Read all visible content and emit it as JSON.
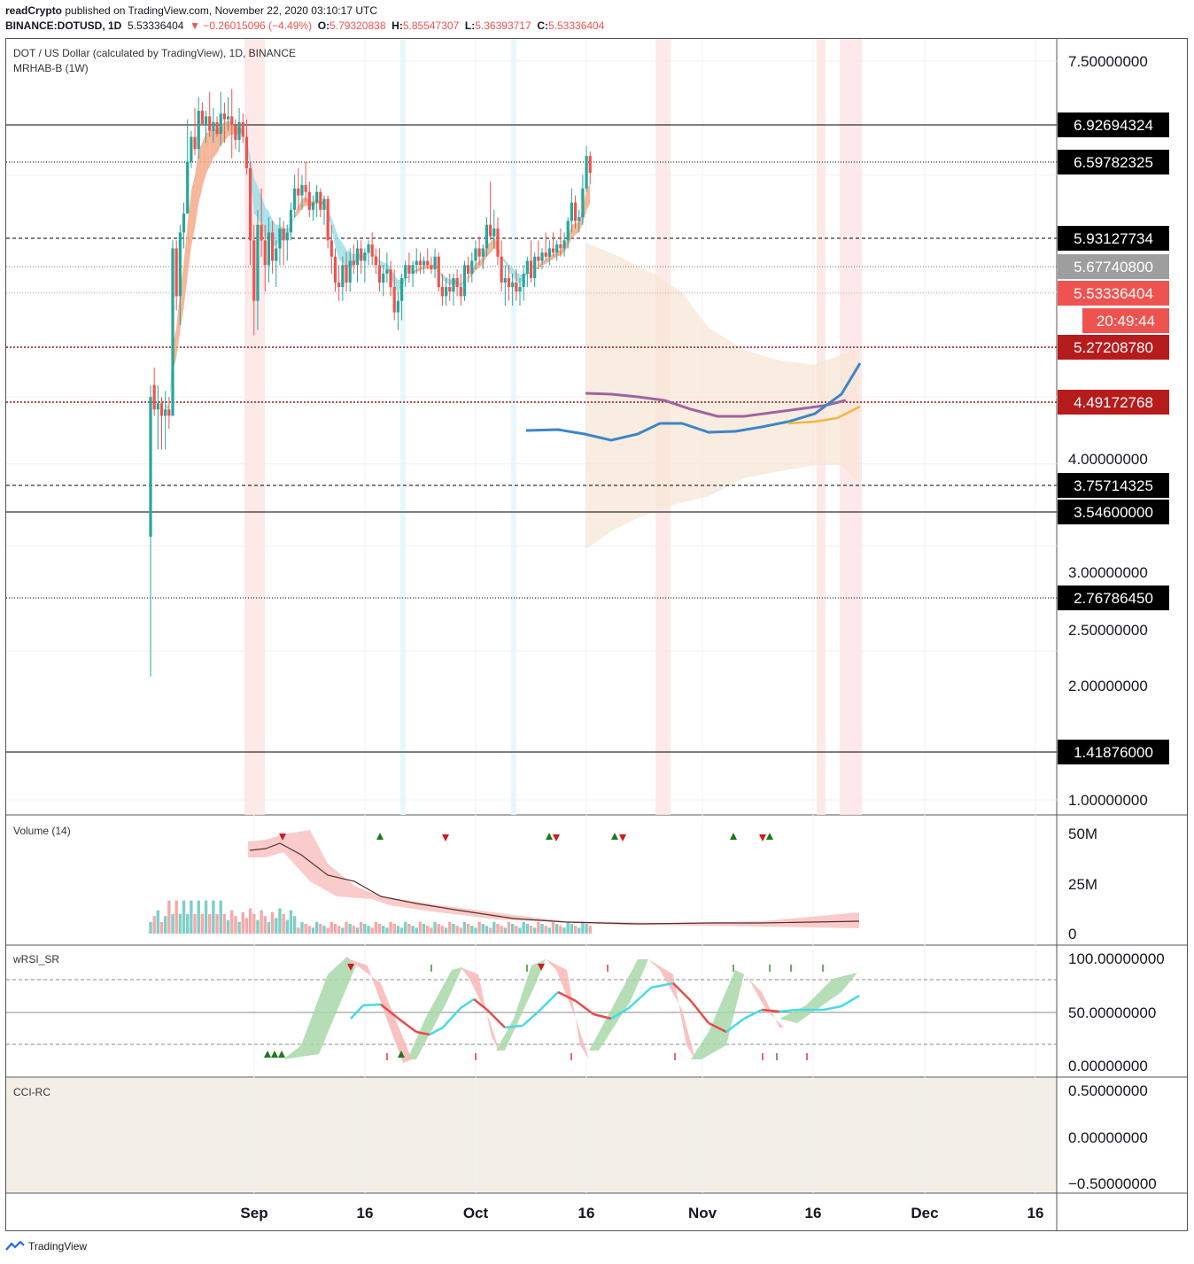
{
  "header": {
    "author": "readCrypto",
    "published": "published on TradingView.com, November 22, 2020 03:10:17 UTC",
    "symbol": "BINANCE:DOTUSD, 1D",
    "last": "5.53336404",
    "change": "▼ −0.26015096 (−4.49%)",
    "o_label": "O:",
    "o": "5.79320838",
    "h_label": "H:",
    "h": "5.85547307",
    "l_label": "L:",
    "l": "5.36393717",
    "c_label": "C:",
    "c": "5.53336404"
  },
  "legend": {
    "title": "DOT / US Dollar (calculated by TradingView), 1D, BINANCE",
    "indicator": "MRHAB-B (1W)"
  },
  "panes": {
    "volume_label": "Volume (14)",
    "rsi_label": "wRSI_SR",
    "cci_label": "CCI-RC"
  },
  "footer": {
    "brand": "TradingView"
  },
  "colors": {
    "up": "#26a69a",
    "down": "#ef5350",
    "black_label": "#000000",
    "last_label": "#ef5350",
    "dark_red_label": "#b71c1c",
    "grey_label": "#9e9e9e",
    "band_fill": "#f5e6d3",
    "ma_blue": "#3d85c6",
    "ma_purple": "#a064a0",
    "ma_orange": "#f5b642"
  },
  "chart_data": {
    "type": "candlestick",
    "title": "DOT / US Dollar (calculated by TradingView), 1D, BINANCE",
    "x_ticks": [
      "Sep",
      "16",
      "Oct",
      "16",
      "Nov",
      "16",
      "Dec",
      "16"
    ],
    "price_axis_ticks": [
      "7.50000000",
      "4.00000000",
      "3.00000000",
      "2.50000000",
      "2.00000000",
      "1.00000000"
    ],
    "ylim": [
      0.9,
      7.85
    ],
    "scale": "log",
    "price_labels": [
      {
        "value": "6.92694324",
        "style": "black",
        "line": "solid"
      },
      {
        "value": "6.59782325",
        "style": "black",
        "line": "dotted"
      },
      {
        "value": "5.93127734",
        "style": "black",
        "line": "dashed"
      },
      {
        "value": "5.67740800",
        "style": "grey",
        "line": "dotted"
      },
      {
        "value": "5.53336404",
        "style": "last",
        "line": "dotted"
      },
      {
        "value": "20:49:44",
        "style": "last",
        "line": "none"
      },
      {
        "value": "5.27208780",
        "style": "dark_red",
        "line": "dotted-red"
      },
      {
        "value": "4.49172768",
        "style": "dark_red",
        "line": "dotted-red"
      },
      {
        "value": "3.75714325",
        "style": "black",
        "line": "dashed"
      },
      {
        "value": "3.54600000",
        "style": "black",
        "line": "solid"
      },
      {
        "value": "2.76786450",
        "style": "black",
        "line": "dotted"
      },
      {
        "value": "1.41876000",
        "style": "black",
        "line": "solid"
      }
    ],
    "candles": [
      [
        2.05,
        3.1,
        1.4,
        3.0
      ],
      [
        3.1,
        3.25,
        2.85,
        2.9
      ],
      [
        2.9,
        3.1,
        2.6,
        2.95
      ],
      [
        2.95,
        3.0,
        2.6,
        2.85
      ],
      [
        2.85,
        3.05,
        2.6,
        2.9
      ],
      [
        2.9,
        3.0,
        2.75,
        2.85
      ],
      [
        2.85,
        4.6,
        2.85,
        4.5
      ],
      [
        4.5,
        4.6,
        3.8,
        3.95
      ],
      [
        3.95,
        4.8,
        3.65,
        4.7
      ],
      [
        4.7,
        5.1,
        4.5,
        4.95
      ],
      [
        4.95,
        6.4,
        4.95,
        5.7
      ],
      [
        5.7,
        6.2,
        5.6,
        6.1
      ],
      [
        6.1,
        6.6,
        5.8,
        5.9
      ],
      [
        5.9,
        6.8,
        5.75,
        6.55
      ],
      [
        6.55,
        6.7,
        6.3,
        6.3
      ],
      [
        6.3,
        6.55,
        6.0,
        6.45
      ],
      [
        6.45,
        6.9,
        6.1,
        6.2
      ],
      [
        6.2,
        6.6,
        6.0,
        6.35
      ],
      [
        6.35,
        6.45,
        6.1,
        6.15
      ],
      [
        6.15,
        6.9,
        5.95,
        6.5
      ],
      [
        6.5,
        6.7,
        6.0,
        6.4
      ],
      [
        6.4,
        6.8,
        6.2,
        6.45
      ],
      [
        6.45,
        6.95,
        5.75,
        6.3
      ],
      [
        6.3,
        6.4,
        5.9,
        6.05
      ],
      [
        6.05,
        6.6,
        5.85,
        6.35
      ],
      [
        6.35,
        6.5,
        6.0,
        6.1
      ],
      [
        6.1,
        6.4,
        5.5,
        5.6
      ],
      [
        5.6,
        5.7,
        4.3,
        4.6
      ],
      [
        4.6,
        4.8,
        3.55,
        3.9
      ],
      [
        3.9,
        5.0,
        3.6,
        4.8
      ],
      [
        4.8,
        5.3,
        4.4,
        4.6
      ],
      [
        4.6,
        4.8,
        4.0,
        4.3
      ],
      [
        4.3,
        4.9,
        4.1,
        4.7
      ],
      [
        4.7,
        4.85,
        4.2,
        4.35
      ],
      [
        4.35,
        4.6,
        4.05,
        4.5
      ],
      [
        4.5,
        4.9,
        4.3,
        4.75
      ],
      [
        4.75,
        4.85,
        4.3,
        4.6
      ],
      [
        4.6,
        4.8,
        4.35,
        4.7
      ],
      [
        4.7,
        5.1,
        4.6,
        5.0
      ],
      [
        5.0,
        5.5,
        4.9,
        5.3
      ],
      [
        5.3,
        5.6,
        5.0,
        5.2
      ],
      [
        5.2,
        5.5,
        5.0,
        5.35
      ],
      [
        5.35,
        5.7,
        5.1,
        5.25
      ],
      [
        5.25,
        5.4,
        4.9,
        5.0
      ],
      [
        5.0,
        5.2,
        4.85,
        5.1
      ],
      [
        5.1,
        5.35,
        4.9,
        5.25
      ],
      [
        5.25,
        5.3,
        4.9,
        5.0
      ],
      [
        5.0,
        5.2,
        4.8,
        5.15
      ],
      [
        5.15,
        5.2,
        4.5,
        4.6
      ],
      [
        4.6,
        4.8,
        4.2,
        4.4
      ],
      [
        4.4,
        4.5,
        4.0,
        4.1
      ],
      [
        4.1,
        4.3,
        3.9,
        4.05
      ],
      [
        4.05,
        4.4,
        3.9,
        4.3
      ],
      [
        4.3,
        4.45,
        4.0,
        4.1
      ],
      [
        4.1,
        4.5,
        4.0,
        4.35
      ],
      [
        4.35,
        4.55,
        4.2,
        4.3
      ],
      [
        4.3,
        4.6,
        4.1,
        4.5
      ],
      [
        4.5,
        4.6,
        4.2,
        4.35
      ],
      [
        4.35,
        4.5,
        4.1,
        4.45
      ],
      [
        4.45,
        4.6,
        4.3,
        4.55
      ],
      [
        4.55,
        4.7,
        4.3,
        4.4
      ],
      [
        4.4,
        4.5,
        4.2,
        4.3
      ],
      [
        4.3,
        4.5,
        4.0,
        4.1
      ],
      [
        4.1,
        4.3,
        3.95,
        4.2
      ],
      [
        4.2,
        4.45,
        4.1,
        4.25
      ],
      [
        4.25,
        4.35,
        3.95,
        4.05
      ],
      [
        4.05,
        4.25,
        3.7,
        3.78
      ],
      [
        3.78,
        4.0,
        3.6,
        3.9
      ],
      [
        3.9,
        4.2,
        3.7,
        4.15
      ],
      [
        4.15,
        4.35,
        4.05,
        4.3
      ],
      [
        4.3,
        4.45,
        4.1,
        4.2
      ],
      [
        4.2,
        4.35,
        4.05,
        4.3
      ],
      [
        4.3,
        4.5,
        4.2,
        4.35
      ],
      [
        4.35,
        4.45,
        4.2,
        4.3
      ],
      [
        4.3,
        4.4,
        4.2,
        4.35
      ],
      [
        4.35,
        4.5,
        4.25,
        4.3
      ],
      [
        4.3,
        4.4,
        4.2,
        4.25
      ],
      [
        4.25,
        4.5,
        4.15,
        4.4
      ],
      [
        4.4,
        4.45,
        4.0,
        4.05
      ],
      [
        4.05,
        4.2,
        3.85,
        3.95
      ],
      [
        3.95,
        4.15,
        3.85,
        4.05
      ],
      [
        4.05,
        4.2,
        3.9,
        4.0
      ],
      [
        4.0,
        4.2,
        3.85,
        4.15
      ],
      [
        4.15,
        4.25,
        3.95,
        4.05
      ],
      [
        4.05,
        4.2,
        3.85,
        3.95
      ],
      [
        3.95,
        4.35,
        3.9,
        4.3
      ],
      [
        4.3,
        4.4,
        4.1,
        4.2
      ],
      [
        4.2,
        4.45,
        4.1,
        4.35
      ],
      [
        4.35,
        4.6,
        4.25,
        4.5
      ],
      [
        4.5,
        4.65,
        4.3,
        4.4
      ],
      [
        4.4,
        4.55,
        4.25,
        4.5
      ],
      [
        4.5,
        4.9,
        4.4,
        4.8
      ],
      [
        4.8,
        5.4,
        4.6,
        4.65
      ],
      [
        4.65,
        5.0,
        4.5,
        4.75
      ],
      [
        4.75,
        4.9,
        4.3,
        4.4
      ],
      [
        4.4,
        4.6,
        4.0,
        4.1
      ],
      [
        4.1,
        4.3,
        3.85,
        4.15
      ],
      [
        4.15,
        4.3,
        3.9,
        4.05
      ],
      [
        4.05,
        4.2,
        3.85,
        4.1
      ],
      [
        4.1,
        4.25,
        3.9,
        4.0
      ],
      [
        4.0,
        4.15,
        3.85,
        4.05
      ],
      [
        4.05,
        4.3,
        3.9,
        4.2
      ],
      [
        4.2,
        4.4,
        4.05,
        4.35
      ],
      [
        4.35,
        4.6,
        4.1,
        4.15
      ],
      [
        4.15,
        4.45,
        4.05,
        4.4
      ],
      [
        4.4,
        4.6,
        4.25,
        4.35
      ],
      [
        4.35,
        4.5,
        4.25,
        4.45
      ],
      [
        4.45,
        4.7,
        4.35,
        4.4
      ],
      [
        4.4,
        4.6,
        4.3,
        4.5
      ],
      [
        4.5,
        4.7,
        4.4,
        4.45
      ],
      [
        4.45,
        4.6,
        4.35,
        4.55
      ],
      [
        4.55,
        4.75,
        4.4,
        4.5
      ],
      [
        4.5,
        4.7,
        4.4,
        4.6
      ],
      [
        4.6,
        4.9,
        4.5,
        4.85
      ],
      [
        4.85,
        5.3,
        4.7,
        5.1
      ],
      [
        5.1,
        5.2,
        4.75,
        4.85
      ],
      [
        4.85,
        5.0,
        4.7,
        4.9
      ],
      [
        4.9,
        5.5,
        4.8,
        5.3
      ],
      [
        5.3,
        5.95,
        5.25,
        5.79
      ],
      [
        5.79,
        5.86,
        5.36,
        5.53
      ]
    ]
  }
}
